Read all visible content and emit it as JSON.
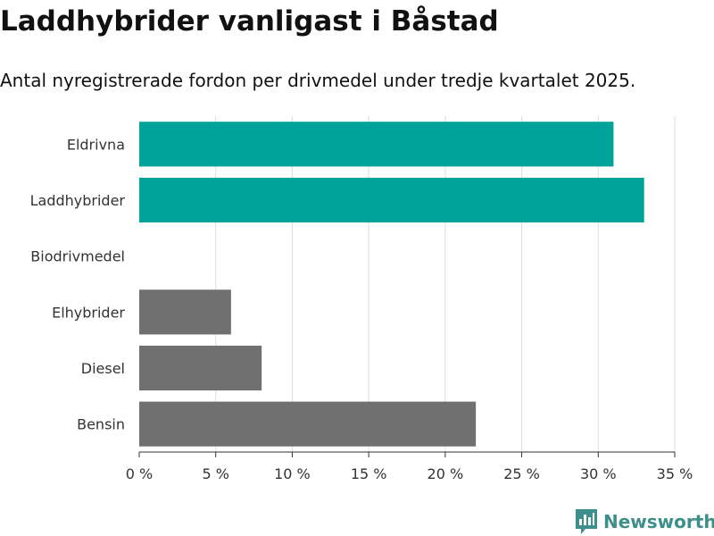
{
  "header": {
    "title": "Laddhybrider vanligast i Båstad",
    "subtitle": "Antal nyregistrerade fordon per drivmedel under tredje kvartalet 2025."
  },
  "chart_data": {
    "type": "bar",
    "orientation": "horizontal",
    "categories": [
      "Eldrivna",
      "Laddhybrider",
      "Biodrivmedel",
      "Elhybrider",
      "Diesel",
      "Bensin"
    ],
    "values": [
      31,
      33,
      0,
      6,
      8,
      22
    ],
    "colors": [
      "#00a39a",
      "#00a39a",
      "#707070",
      "#707070",
      "#707070",
      "#707070"
    ],
    "xlim": [
      0,
      35
    ],
    "xticks": [
      0,
      5,
      10,
      15,
      20,
      25,
      30,
      35
    ],
    "tick_labels": [
      "0 %",
      "5 %",
      "10 %",
      "15 %",
      "20 %",
      "25 %",
      "30 %",
      "35 %"
    ],
    "grid": "vertical",
    "legend": "none"
  },
  "branding": {
    "name": "Newsworthy",
    "icon": "newsworthy-logo-icon",
    "color": "#3d8f8c"
  }
}
